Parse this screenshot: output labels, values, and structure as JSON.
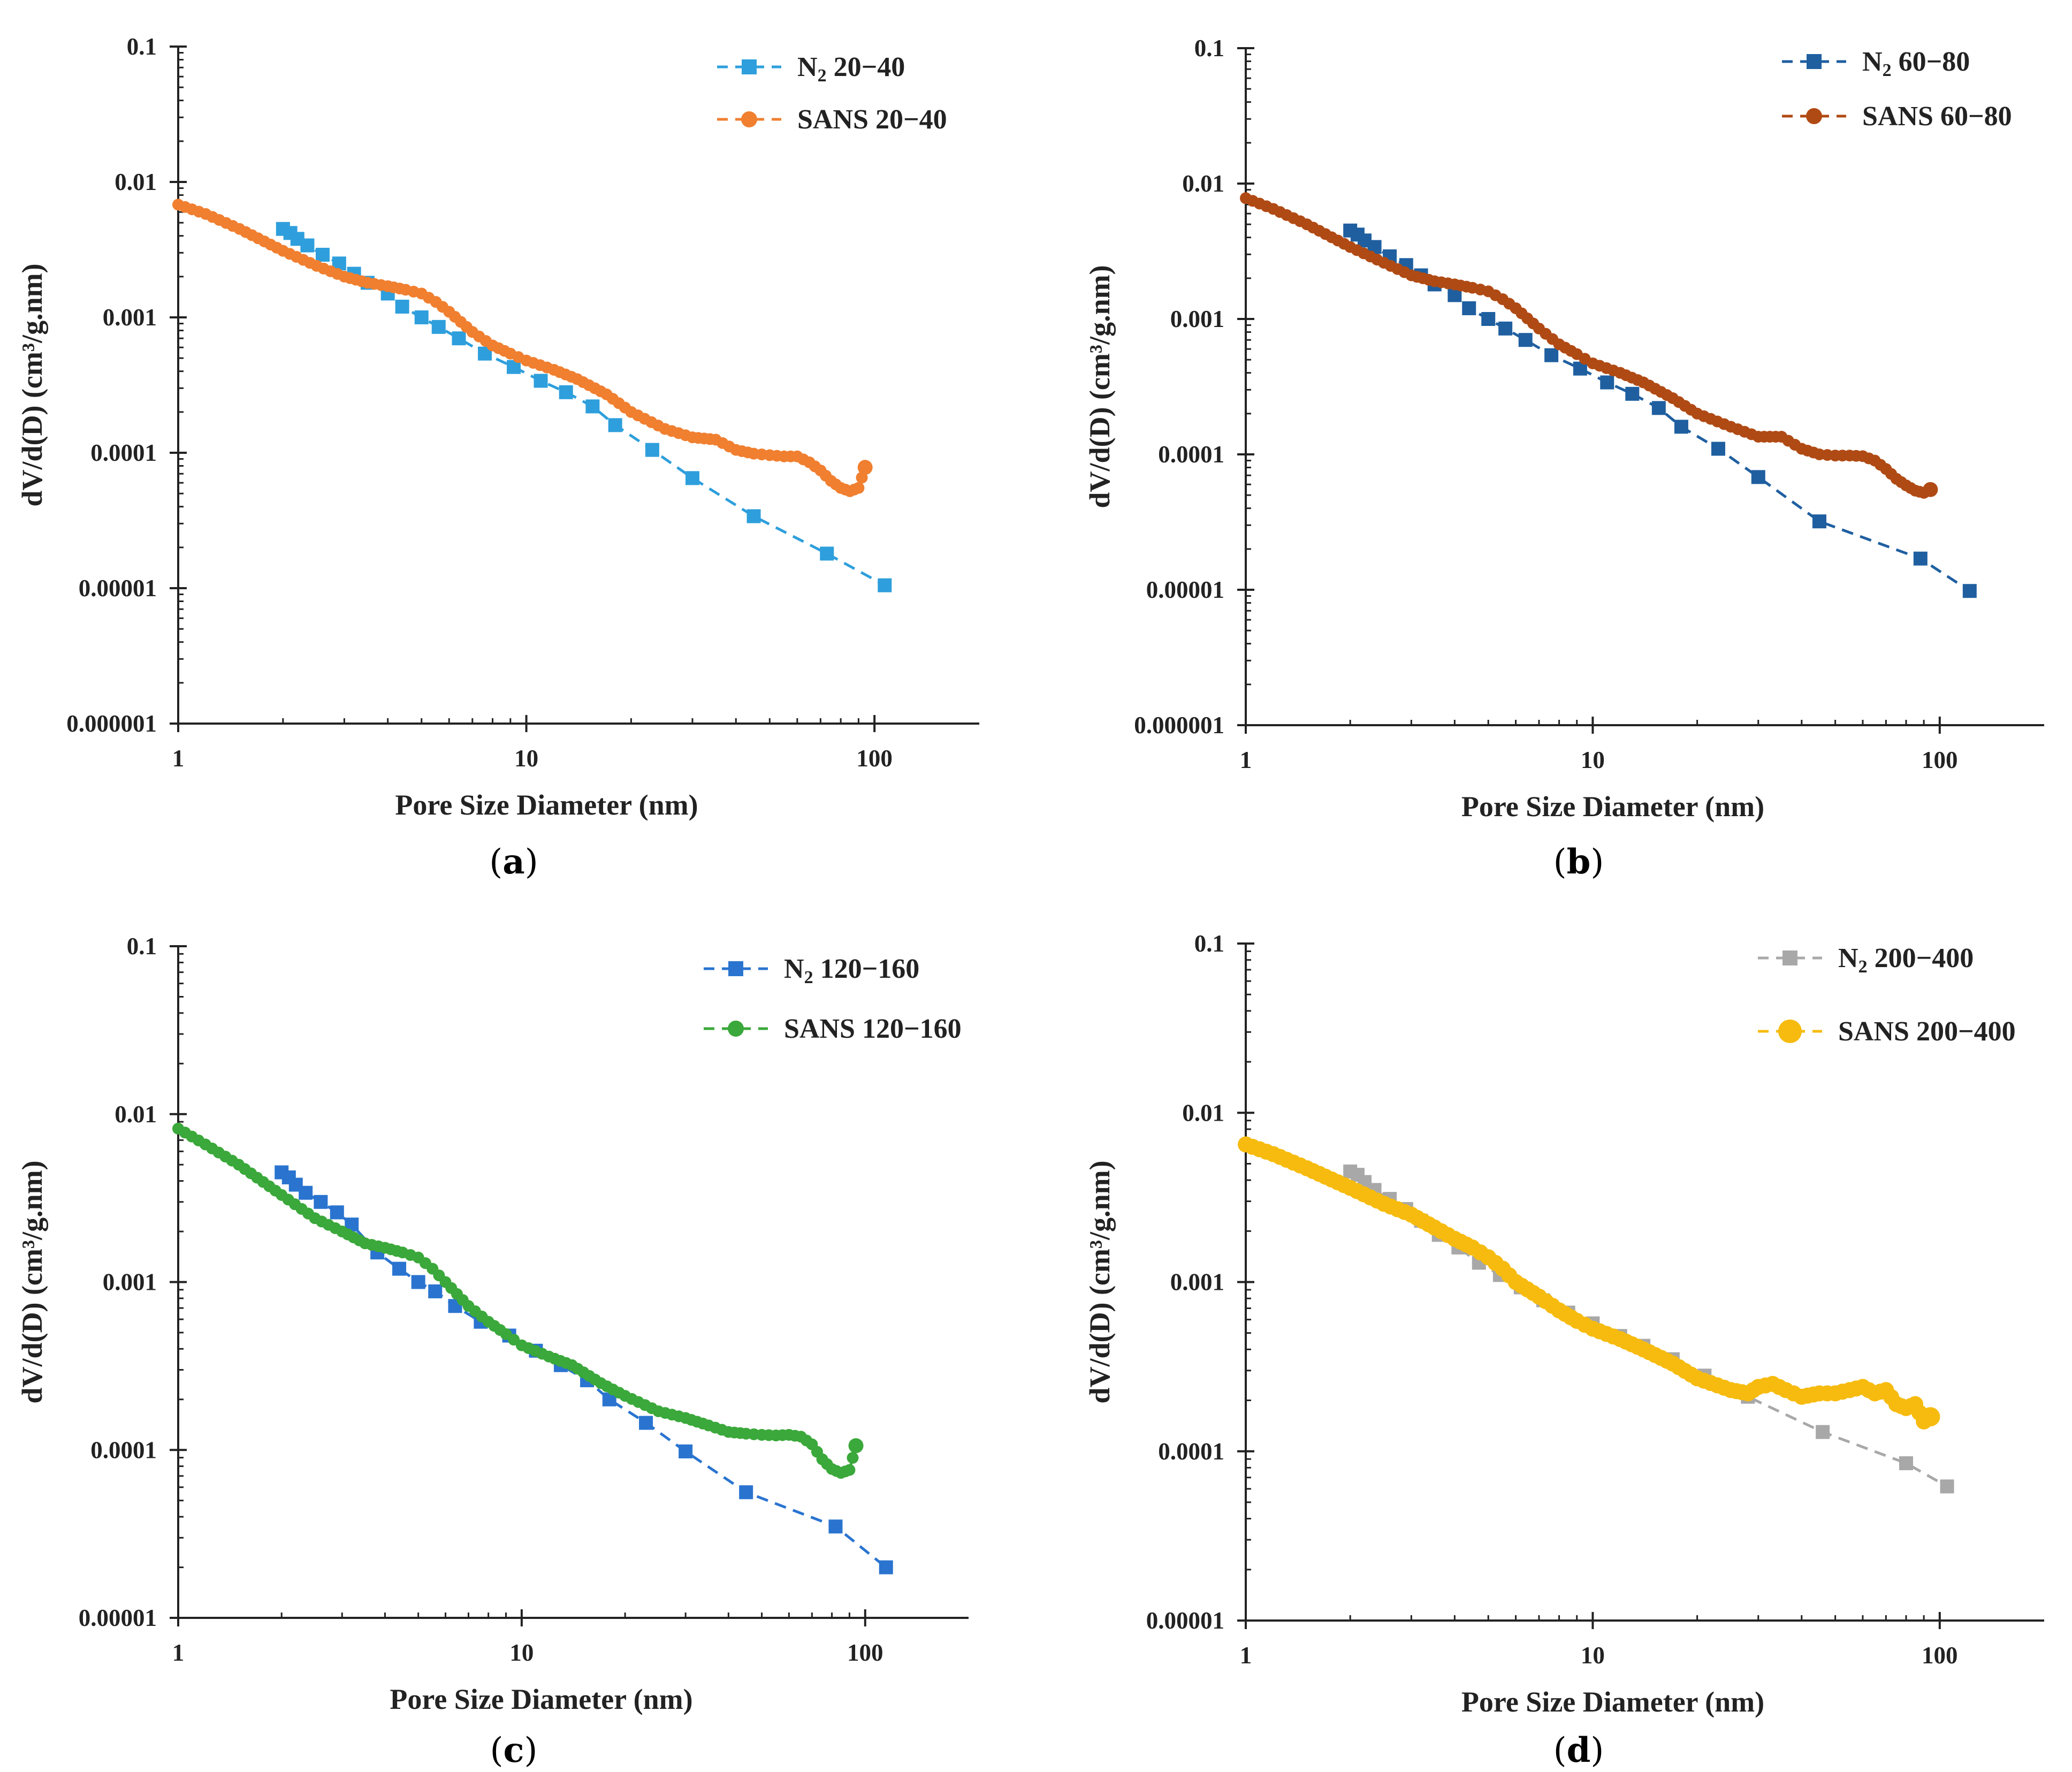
{
  "panels": [
    {
      "id": "a",
      "paren_open": "(",
      "letter": "a",
      "paren_close": ")"
    },
    {
      "id": "b",
      "paren_open": "(",
      "letter": "b",
      "paren_close": ")"
    },
    {
      "id": "c",
      "paren_open": "(",
      "letter": "c",
      "paren_close": ")"
    },
    {
      "id": "d",
      "paren_open": "(",
      "letter": "d",
      "paren_close": ")"
    }
  ],
  "chart_data": [
    {
      "type": "scatter",
      "panel": "a",
      "xscale": "log",
      "yscale": "log",
      "xlim": [
        1,
        200
      ],
      "ylim": [
        1e-06,
        0.1
      ],
      "xticks": [
        1,
        10,
        100
      ],
      "xtick_labels": [
        "1",
        "10",
        "100"
      ],
      "yticks": [
        0.1,
        0.01,
        0.001,
        0.0001,
        1e-05,
        1e-06
      ],
      "ytick_labels": [
        "0.1",
        "0.01",
        "0.001",
        "0.0001",
        "0.00001",
        "0.000001"
      ],
      "xlabel": "Pore Size Diameter (nm)",
      "ylabel": "dV/d(D) (cm³/g.nm)",
      "legend_position": "top-right",
      "series": [
        {
          "name": "N₂ 20−40",
          "label_prefix": "N",
          "label_sub": "2",
          "label_rest": " 20−40",
          "marker": "square",
          "color": "#2e9fdc",
          "line": "dashed",
          "x": [
            2.0,
            2.1,
            2.2,
            2.35,
            2.6,
            2.9,
            3.2,
            3.5,
            4.0,
            4.4,
            5.0,
            5.6,
            6.4,
            7.6,
            9.2,
            11.0,
            13.0,
            15.5,
            18.0,
            23.0,
            30.0,
            45.0,
            73.0,
            107.0
          ],
          "y": [
            0.0045,
            0.0042,
            0.0038,
            0.0034,
            0.0029,
            0.0025,
            0.0021,
            0.0018,
            0.0015,
            0.0012,
            0.001,
            0.00085,
            0.0007,
            0.00054,
            0.00043,
            0.00034,
            0.00028,
            0.00022,
            0.00016,
            0.000105,
            6.5e-05,
            3.4e-05,
            1.8e-05,
            1.05e-05
          ]
        },
        {
          "name": "SANS 20−40",
          "label_prefix": "SANS 20−40",
          "marker": "circle",
          "color": "#f07f30",
          "line": "dashed",
          "x": [
            1.0,
            1.2,
            1.5,
            2.0,
            2.5,
            3.0,
            3.5,
            4.0,
            4.5,
            5.0,
            5.5,
            6.0,
            7.0,
            8.0,
            9.0,
            10.0,
            12.0,
            14.0,
            17.0,
            20.0,
            25.0,
            30.0,
            35.0,
            40.0,
            45.0,
            50.0,
            55.0,
            60.0,
            65.0,
            70.0,
            75.0,
            80.0,
            85.0,
            90.0,
            94.0
          ],
          "y": [
            0.0068,
            0.0058,
            0.0045,
            0.0031,
            0.0024,
            0.002,
            0.0018,
            0.0017,
            0.0016,
            0.0015,
            0.0013,
            0.0011,
            0.00078,
            0.00062,
            0.00054,
            0.00048,
            0.00041,
            0.00035,
            0.00027,
            0.0002,
            0.00015,
            0.00013,
            0.000125,
            0.000105,
            9.85e-05,
            9.6e-05,
            9.4e-05,
            9.4e-05,
            8.5e-05,
            7.4e-05,
            6.2e-05,
            5.5e-05,
            5.2e-05,
            5.5e-05,
            7.8e-05
          ]
        }
      ]
    },
    {
      "type": "scatter",
      "panel": "b",
      "xscale": "log",
      "yscale": "log",
      "xlim": [
        1,
        200
      ],
      "ylim": [
        1e-06,
        0.1
      ],
      "xticks": [
        1,
        10,
        100
      ],
      "xtick_labels": [
        "1",
        "10",
        "100"
      ],
      "yticks": [
        0.1,
        0.01,
        0.001,
        0.0001,
        1e-05,
        1e-06
      ],
      "ytick_labels": [
        "0.1",
        "0.01",
        "0.001",
        "0.0001",
        "0.00001",
        "0.000001"
      ],
      "xlabel": "Pore Size Diameter (nm)",
      "ylabel": "dV/d(D) (cm³/g.nm)",
      "legend_position": "top-right",
      "series": [
        {
          "name": "N₂ 60−80",
          "label_prefix": "N",
          "label_sub": "2",
          "label_rest": " 60−80",
          "marker": "square",
          "color": "#1f5fa0",
          "line": "dashed",
          "x": [
            2.0,
            2.1,
            2.2,
            2.35,
            2.6,
            2.9,
            3.2,
            3.5,
            4.0,
            4.4,
            5.0,
            5.6,
            6.4,
            7.6,
            9.2,
            11.0,
            13.0,
            15.5,
            18.0,
            23.0,
            30.0,
            45.0,
            88.0,
            122.0
          ],
          "y": [
            0.0045,
            0.0042,
            0.0038,
            0.0034,
            0.0029,
            0.0025,
            0.0021,
            0.0018,
            0.0015,
            0.0012,
            0.001,
            0.00085,
            0.0007,
            0.00054,
            0.00043,
            0.00034,
            0.00028,
            0.00022,
            0.00016,
            0.00011,
            6.8e-05,
            3.2e-05,
            1.7e-05,
            9.8e-06
          ]
        },
        {
          "name": "SANS 60−80",
          "label_prefix": "SANS 60−80",
          "marker": "circle",
          "color": "#b04a14",
          "line": "dashed",
          "x": [
            1.0,
            1.2,
            1.5,
            2.0,
            2.5,
            3.0,
            3.5,
            4.0,
            4.5,
            5.0,
            5.5,
            6.0,
            7.0,
            8.0,
            9.0,
            10.0,
            12.0,
            14.0,
            17.0,
            20.0,
            25.0,
            30.0,
            35.0,
            40.0,
            45.0,
            50.0,
            55.0,
            60.0,
            65.0,
            70.0,
            75.0,
            80.0,
            85.0,
            90.0,
            94.0
          ],
          "y": [
            0.0078,
            0.0065,
            0.005,
            0.0034,
            0.0026,
            0.0021,
            0.0019,
            0.0018,
            0.0017,
            0.0016,
            0.0014,
            0.0012,
            0.00085,
            0.00065,
            0.00055,
            0.00047,
            0.0004,
            0.00034,
            0.00026,
            0.0002,
            0.00016,
            0.000135,
            0.000135,
            0.00011,
            0.0001,
            9.8e-05,
            9.8e-05,
            9.7e-05,
            9e-05,
            7.8e-05,
            6.6e-05,
            5.9e-05,
            5.4e-05,
            5.2e-05,
            5.5e-05
          ]
        }
      ]
    },
    {
      "type": "scatter",
      "panel": "c",
      "xscale": "log",
      "yscale": "log",
      "xlim": [
        1,
        200
      ],
      "ylim": [
        1e-05,
        0.1
      ],
      "xticks": [
        1,
        10,
        100
      ],
      "xtick_labels": [
        "1",
        "10",
        "100"
      ],
      "yticks": [
        0.1,
        0.01,
        0.001,
        0.0001,
        1e-05
      ],
      "ytick_labels": [
        "0.1",
        "0.01",
        "0.001",
        "0.0001",
        "0.00001"
      ],
      "xlabel": "Pore Size Diameter (nm)",
      "ylabel": "dV/d(D) (cm³/g.nm)",
      "legend_position": "top-right",
      "series": [
        {
          "name": "N₂ 120−160",
          "label_prefix": "N",
          "label_sub": "2",
          "label_rest": " 120−160",
          "marker": "square",
          "color": "#2a74d0",
          "line": "dashed",
          "x": [
            2.0,
            2.1,
            2.2,
            2.35,
            2.6,
            2.9,
            3.2,
            3.8,
            4.4,
            5.0,
            5.6,
            6.4,
            7.6,
            9.2,
            11.0,
            13.0,
            15.5,
            18.0,
            23.0,
            30.0,
            45.0,
            82.0,
            115.0
          ],
          "y": [
            0.0045,
            0.0042,
            0.0038,
            0.0034,
            0.003,
            0.0026,
            0.0022,
            0.0015,
            0.0012,
            0.001,
            0.00088,
            0.00072,
            0.00058,
            0.00048,
            0.00039,
            0.00032,
            0.00026,
            0.0002,
            0.000145,
            9.8e-05,
            5.6e-05,
            3.5e-05,
            2e-05
          ]
        },
        {
          "name": "SANS 120−160",
          "label_prefix": "SANS 120−160",
          "marker": "circle",
          "color": "#3aa83a",
          "line": "dashed",
          "x": [
            1.0,
            1.2,
            1.5,
            2.0,
            2.5,
            3.0,
            3.5,
            4.0,
            4.5,
            5.0,
            5.5,
            6.0,
            7.0,
            8.0,
            9.0,
            10.0,
            12.0,
            14.0,
            17.0,
            20.0,
            25.0,
            30.0,
            35.0,
            40.0,
            45.0,
            50.0,
            55.0,
            60.0,
            65.0,
            70.0,
            75.0,
            80.0,
            85.0,
            90.0,
            94.0
          ],
          "y": [
            0.0082,
            0.0066,
            0.005,
            0.0033,
            0.0024,
            0.002,
            0.0017,
            0.0016,
            0.0015,
            0.0014,
            0.0012,
            0.001,
            0.00072,
            0.00058,
            0.00049,
            0.00042,
            0.00036,
            0.00032,
            0.00025,
            0.00021,
            0.00017,
            0.000155,
            0.00014,
            0.000128,
            0.000125,
            0.000123,
            0.000122,
            0.000123,
            0.00012,
            0.000108,
            8.8e-05,
            7.7e-05,
            7.3e-05,
            7.6e-05,
            0.000106
          ]
        }
      ]
    },
    {
      "type": "scatter",
      "panel": "d",
      "xscale": "log",
      "yscale": "log",
      "xlim": [
        1,
        200
      ],
      "ylim": [
        1e-05,
        0.1
      ],
      "xticks": [
        1,
        10,
        100
      ],
      "xtick_labels": [
        "1",
        "10",
        "100"
      ],
      "yticks": [
        0.1,
        0.01,
        0.001,
        0.0001,
        1e-05
      ],
      "ytick_labels": [
        "0.1",
        "0.01",
        "0.001",
        "0.0001",
        "0.00001"
      ],
      "xlabel": "Pore Size Diameter (nm)",
      "ylabel": "dV/d(D) (cm³/g.nm)",
      "legend_position": "top-right",
      "series": [
        {
          "name": "N₂ 200−400",
          "label_prefix": "N",
          "label_sub": "2",
          "label_rest": " 200−400",
          "marker": "square",
          "color": "#a8a8a8",
          "line": "dashed",
          "x": [
            2.0,
            2.1,
            2.2,
            2.35,
            2.6,
            2.9,
            3.2,
            3.6,
            4.1,
            4.7,
            5.4,
            6.2,
            7.2,
            8.5,
            10.0,
            12.0,
            14.0,
            17.0,
            21.0,
            28.0,
            46.0,
            80.0,
            105.0
          ],
          "y": [
            0.0045,
            0.0043,
            0.0039,
            0.0035,
            0.0031,
            0.0027,
            0.0023,
            0.0019,
            0.0016,
            0.0013,
            0.0011,
            0.00093,
            0.00078,
            0.00066,
            0.00057,
            0.00048,
            0.00042,
            0.00035,
            0.00028,
            0.00021,
            0.00013,
            8.5e-05,
            6.2e-05
          ]
        },
        {
          "name": "SANS 200−400",
          "label_prefix": "SANS 200−400",
          "marker": "circle",
          "color": "#f6bb0e",
          "line": "dashed",
          "x": [
            1.0,
            1.2,
            1.5,
            2.0,
            2.5,
            3.0,
            3.5,
            4.0,
            4.5,
            5.0,
            5.5,
            6.0,
            7.0,
            8.0,
            9.0,
            10.0,
            12.0,
            14.0,
            17.0,
            20.0,
            25.0,
            28.0,
            30.0,
            33.0,
            36.0,
            40.0,
            45.0,
            50.0,
            55.0,
            60.0,
            65.0,
            70.0,
            75.0,
            80.0,
            85.0,
            90.0,
            94.0
          ],
          "y": [
            0.0065,
            0.0057,
            0.0047,
            0.0036,
            0.0029,
            0.0025,
            0.0021,
            0.0018,
            0.0016,
            0.0014,
            0.0012,
            0.001,
            0.00082,
            0.00068,
            0.00059,
            0.00053,
            0.00046,
            0.0004,
            0.00033,
            0.00027,
            0.00023,
            0.00022,
            0.00024,
            0.00025,
            0.00023,
            0.00021,
            0.00022,
            0.00022,
            0.00023,
            0.00024,
            0.00022,
            0.00023,
            0.00019,
            0.00018,
            0.00019,
            0.00015,
            0.00016
          ]
        }
      ]
    }
  ]
}
